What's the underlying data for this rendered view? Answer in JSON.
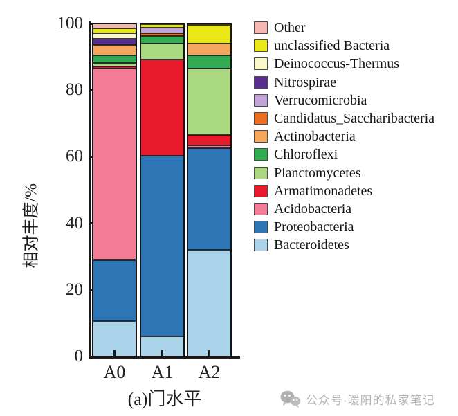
{
  "page": {
    "background": "#ffffff",
    "axis_color": "#1a1a1a"
  },
  "caption": "(a)门水平",
  "watermark": {
    "icon": "wechat-icon",
    "text": "公众号·暖阳的私家笔记"
  },
  "chart_data": {
    "type": "bar",
    "stacked": true,
    "title": "",
    "categories": [
      "A0",
      "A1",
      "A2"
    ],
    "xlabel": "(a)门水平",
    "ylabel": "相对丰度/%",
    "ylim": [
      0,
      100
    ],
    "yticks": [
      0,
      20,
      40,
      60,
      80,
      100
    ],
    "grid": false,
    "legend_position": "right",
    "series": [
      {
        "name": "Other",
        "color": "#f5b9b1",
        "values": [
          1.5,
          0.3,
          0.5
        ]
      },
      {
        "name": "unclassified Bacteria",
        "color": "#e9e718",
        "values": [
          1.5,
          1.0,
          5.5
        ]
      },
      {
        "name": "Deinococcus-Thermus",
        "color": "#f8f8cb",
        "values": [
          1.5,
          0.0,
          0.0
        ]
      },
      {
        "name": "Nitrospirae",
        "color": "#5a2d90",
        "values": [
          2.0,
          0.0,
          0.0
        ]
      },
      {
        "name": "Verrucomicrobia",
        "color": "#c3a4d8",
        "values": [
          0.0,
          1.7,
          0.0
        ]
      },
      {
        "name": "Candidatus_Saccharibacteria",
        "color": "#ed6e1e",
        "values": [
          0.0,
          0.8,
          0.0
        ]
      },
      {
        "name": "Actinobacteria",
        "color": "#f4a75d",
        "values": [
          3.0,
          0.0,
          3.5
        ]
      },
      {
        "name": "Chloroflexi",
        "color": "#31ac52",
        "values": [
          2.3,
          2.2,
          4.0
        ]
      },
      {
        "name": "Planctomycetes",
        "color": "#aad880",
        "values": [
          1.0,
          4.8,
          20.0
        ]
      },
      {
        "name": "Armatimonadetes",
        "color": "#e9192c",
        "values": [
          0.7,
          29.0,
          3.0
        ]
      },
      {
        "name": "Acidobacteria",
        "color": "#f47c97",
        "values": [
          57.5,
          0.0,
          1.0
        ]
      },
      {
        "name": "Proteobacteria",
        "color": "#2e75b6",
        "values": [
          18.5,
          54.2,
          30.5
        ]
      },
      {
        "name": "Bacteroidetes",
        "color": "#aad3e9",
        "values": [
          10.5,
          6.0,
          32.0
        ]
      }
    ]
  }
}
